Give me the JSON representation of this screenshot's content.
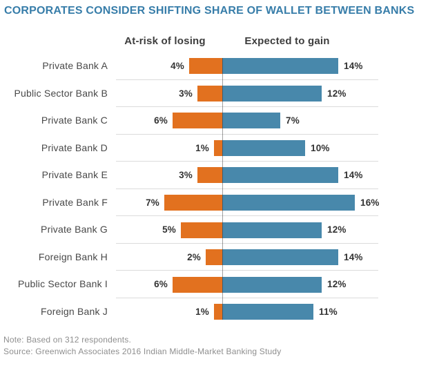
{
  "title": "CORPORATES CONSIDER SHIFTING SHARE OF WALLET BETWEEN BANKS",
  "columns": {
    "left_header": "At-risk of losing",
    "right_header": "Expected to gain"
  },
  "footer": {
    "note": "Note: Based on 312 respondents.",
    "source": "Source: Greenwich Associates 2016 Indian Middle-Market Banking Study"
  },
  "colors": {
    "title": "#377DA9",
    "lose_bar": "#E2711F",
    "gain_bar": "#4888AB",
    "separator": "#DBDBDB",
    "axis_line": "#8F8F8F"
  },
  "chart_data": {
    "type": "bar",
    "orientation": "horizontal-diverging",
    "title": "CORPORATES CONSIDER SHIFTING SHARE OF WALLET BETWEEN BANKS",
    "categories": [
      "Private Bank A",
      "Public Sector Bank B",
      "Private Bank C",
      "Private Bank D",
      "Private Bank E",
      "Private Bank F",
      "Private Bank G",
      "Foreign Bank H",
      "Public Sector Bank I",
      "Foreign Bank J"
    ],
    "series": [
      {
        "name": "At-risk of losing",
        "side": "left",
        "color": "#E2711F",
        "values": [
          4,
          3,
          6,
          1,
          3,
          7,
          5,
          2,
          6,
          1
        ]
      },
      {
        "name": "Expected to gain",
        "side": "right",
        "color": "#4888AB",
        "values": [
          14,
          12,
          7,
          10,
          14,
          16,
          12,
          14,
          12,
          11
        ]
      }
    ],
    "value_suffix": "%",
    "grid": "row-separators",
    "legend_position": "column-headers-above-chart"
  }
}
